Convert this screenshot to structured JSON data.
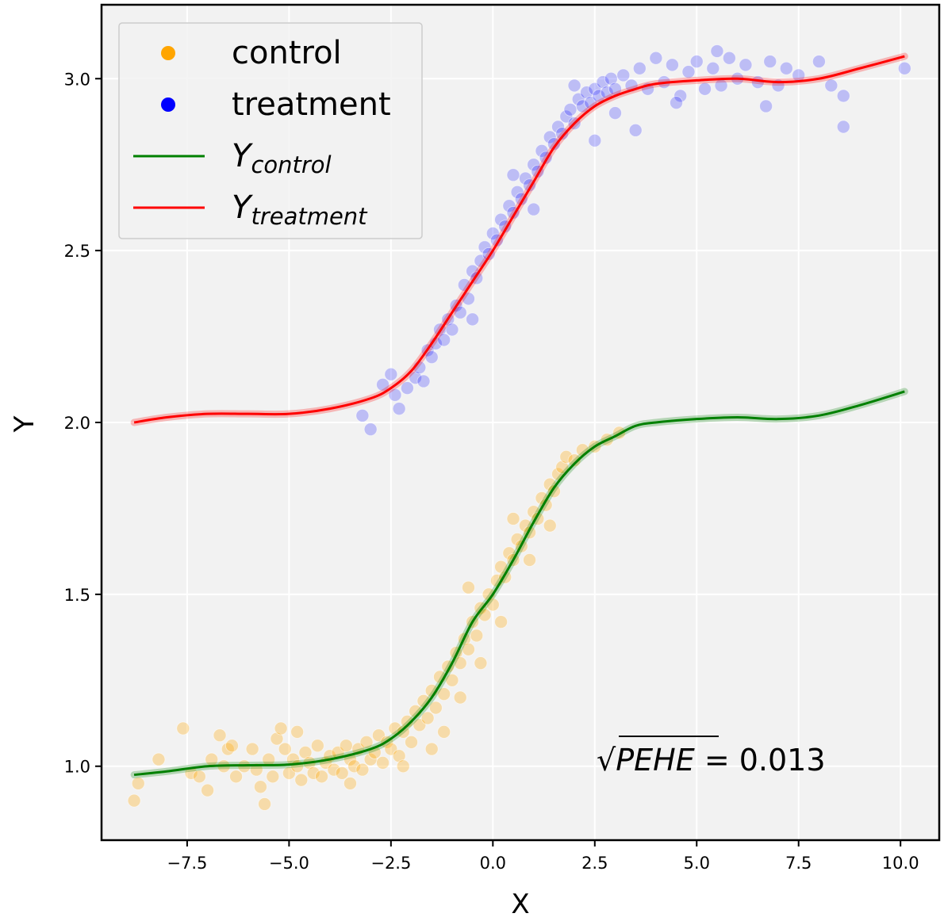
{
  "chart_data": {
    "type": "scatter",
    "xlabel": "X",
    "ylabel": "Y",
    "xlim": [
      -9.6,
      10.95
    ],
    "ylim": [
      0.785,
      3.215
    ],
    "xticks": [
      -7.5,
      -5.0,
      -2.5,
      0.0,
      2.5,
      5.0,
      7.5,
      10.0
    ],
    "xtick_labels": [
      "−7.5",
      "−5.0",
      "−2.5",
      "0.0",
      "2.5",
      "5.0",
      "7.5",
      "10.0"
    ],
    "yticks": [
      1.0,
      1.5,
      2.0,
      2.5,
      3.0
    ],
    "ytick_labels": [
      "1.0",
      "1.5",
      "2.0",
      "2.5",
      "3.0"
    ],
    "grid": true,
    "background_color": "#f2f2f2",
    "legend": {
      "placement": "top-left",
      "entries": [
        {
          "label": "control",
          "kind": "marker",
          "color": "#ffa500"
        },
        {
          "label": "treatment",
          "kind": "marker",
          "color": "#0000ff"
        },
        {
          "label_main": "Y",
          "label_sub": "control",
          "kind": "line",
          "color": "#008000"
        },
        {
          "label_main": "Y",
          "label_sub": "treatment",
          "kind": "line",
          "color": "#ff0000"
        }
      ]
    },
    "annotation": {
      "sqrt_symbol": "√",
      "term": "PEHE",
      "rest": " = 0.013"
    },
    "series": [
      {
        "kind": "scatter",
        "color": "#ffa500",
        "opacity": 0.3,
        "points": [
          [
            -8.8,
            0.9
          ],
          [
            -8.7,
            0.95
          ],
          [
            -8.2,
            1.02
          ],
          [
            -7.6,
            1.11
          ],
          [
            -7.4,
            0.98
          ],
          [
            -7.2,
            0.97
          ],
          [
            -7.0,
            0.93
          ],
          [
            -6.9,
            1.02
          ],
          [
            -6.7,
            1.09
          ],
          [
            -6.6,
            1.0
          ],
          [
            -6.5,
            1.05
          ],
          [
            -6.4,
            1.06
          ],
          [
            -6.3,
            0.97
          ],
          [
            -6.1,
            1.0
          ],
          [
            -5.9,
            1.05
          ],
          [
            -5.8,
            0.99
          ],
          [
            -5.7,
            0.94
          ],
          [
            -5.6,
            0.89
          ],
          [
            -5.5,
            1.02
          ],
          [
            -5.4,
            0.97
          ],
          [
            -5.3,
            1.08
          ],
          [
            -5.2,
            1.11
          ],
          [
            -5.1,
            1.05
          ],
          [
            -5.0,
            0.98
          ],
          [
            -4.9,
            1.02
          ],
          [
            -4.8,
            1.0
          ],
          [
            -4.7,
            0.96
          ],
          [
            -4.6,
            1.04
          ],
          [
            -4.5,
            1.01
          ],
          [
            -4.4,
            0.98
          ],
          [
            -4.3,
            1.06
          ],
          [
            -4.2,
            0.97
          ],
          [
            -4.1,
            1.01
          ],
          [
            -4.0,
            1.03
          ],
          [
            -3.9,
            0.99
          ],
          [
            -3.8,
            1.04
          ],
          [
            -3.7,
            0.98
          ],
          [
            -3.6,
            1.06
          ],
          [
            -3.5,
            1.02
          ],
          [
            -3.4,
            1.0
          ],
          [
            -3.3,
            1.05
          ],
          [
            -3.2,
            0.99
          ],
          [
            -3.1,
            1.07
          ],
          [
            -3.0,
            1.02
          ],
          [
            -2.9,
            1.04
          ],
          [
            -2.8,
            1.09
          ],
          [
            -2.7,
            1.01
          ],
          [
            -2.6,
            1.07
          ],
          [
            -2.5,
            1.05
          ],
          [
            -2.4,
            1.11
          ],
          [
            -2.3,
            1.03
          ],
          [
            -2.2,
            1.1
          ],
          [
            -2.1,
            1.13
          ],
          [
            -2.0,
            1.07
          ],
          [
            -1.9,
            1.16
          ],
          [
            -1.8,
            1.12
          ],
          [
            -1.7,
            1.19
          ],
          [
            -1.6,
            1.14
          ],
          [
            -1.5,
            1.22
          ],
          [
            -1.4,
            1.17
          ],
          [
            -1.3,
            1.26
          ],
          [
            -1.2,
            1.21
          ],
          [
            -1.1,
            1.29
          ],
          [
            -1.0,
            1.25
          ],
          [
            -0.9,
            1.33
          ],
          [
            -0.8,
            1.3
          ],
          [
            -0.7,
            1.37
          ],
          [
            -0.6,
            1.34
          ],
          [
            -0.5,
            1.42
          ],
          [
            -0.4,
            1.38
          ],
          [
            -0.3,
            1.46
          ],
          [
            -0.2,
            1.44
          ],
          [
            -0.1,
            1.5
          ],
          [
            0.0,
            1.47
          ],
          [
            0.1,
            1.54
          ],
          [
            0.2,
            1.58
          ],
          [
            0.3,
            1.55
          ],
          [
            0.4,
            1.62
          ],
          [
            0.5,
            1.6
          ],
          [
            0.6,
            1.66
          ],
          [
            0.7,
            1.64
          ],
          [
            0.8,
            1.7
          ],
          [
            0.9,
            1.68
          ],
          [
            1.0,
            1.74
          ],
          [
            1.1,
            1.72
          ],
          [
            1.2,
            1.78
          ],
          [
            1.3,
            1.76
          ],
          [
            1.4,
            1.82
          ],
          [
            1.5,
            1.8
          ],
          [
            1.6,
            1.85
          ],
          [
            1.7,
            1.87
          ],
          [
            1.8,
            1.9
          ],
          [
            2.0,
            1.89
          ],
          [
            2.2,
            1.92
          ],
          [
            2.5,
            1.93
          ],
          [
            2.8,
            1.95
          ],
          [
            3.1,
            1.97
          ],
          [
            -1.5,
            1.05
          ],
          [
            -1.2,
            1.1
          ],
          [
            -0.8,
            1.2
          ],
          [
            -0.3,
            1.3
          ],
          [
            0.2,
            1.42
          ],
          [
            0.9,
            1.6
          ],
          [
            1.4,
            1.7
          ],
          [
            -3.5,
            0.95
          ],
          [
            -4.8,
            1.1
          ],
          [
            -2.2,
            1.0
          ],
          [
            -0.6,
            1.52
          ],
          [
            0.5,
            1.72
          ]
        ]
      },
      {
        "kind": "scatter",
        "color": "#0000ff",
        "opacity": 0.22,
        "points": [
          [
            -3.2,
            2.02
          ],
          [
            -3.0,
            1.98
          ],
          [
            -2.7,
            2.11
          ],
          [
            -2.5,
            2.14
          ],
          [
            -2.4,
            2.08
          ],
          [
            -2.3,
            2.04
          ],
          [
            -2.1,
            2.1
          ],
          [
            -1.9,
            2.13
          ],
          [
            -1.8,
            2.16
          ],
          [
            -1.7,
            2.12
          ],
          [
            -1.6,
            2.21
          ],
          [
            -1.5,
            2.19
          ],
          [
            -1.4,
            2.23
          ],
          [
            -1.3,
            2.27
          ],
          [
            -1.2,
            2.24
          ],
          [
            -1.1,
            2.3
          ],
          [
            -1.0,
            2.27
          ],
          [
            -0.9,
            2.34
          ],
          [
            -0.8,
            2.32
          ],
          [
            -0.7,
            2.4
          ],
          [
            -0.6,
            2.36
          ],
          [
            -0.5,
            2.44
          ],
          [
            -0.4,
            2.42
          ],
          [
            -0.3,
            2.47
          ],
          [
            -0.2,
            2.51
          ],
          [
            -0.1,
            2.49
          ],
          [
            0.0,
            2.55
          ],
          [
            0.1,
            2.53
          ],
          [
            0.2,
            2.59
          ],
          [
            0.3,
            2.57
          ],
          [
            0.4,
            2.63
          ],
          [
            0.5,
            2.61
          ],
          [
            0.6,
            2.67
          ],
          [
            0.7,
            2.65
          ],
          [
            0.8,
            2.71
          ],
          [
            0.9,
            2.69
          ],
          [
            1.0,
            2.75
          ],
          [
            1.1,
            2.73
          ],
          [
            1.2,
            2.79
          ],
          [
            1.3,
            2.77
          ],
          [
            1.4,
            2.83
          ],
          [
            1.5,
            2.81
          ],
          [
            1.6,
            2.86
          ],
          [
            1.7,
            2.84
          ],
          [
            1.8,
            2.89
          ],
          [
            1.9,
            2.91
          ],
          [
            2.0,
            2.87
          ],
          [
            2.1,
            2.94
          ],
          [
            2.2,
            2.92
          ],
          [
            2.3,
            2.96
          ],
          [
            2.4,
            2.93
          ],
          [
            2.5,
            2.97
          ],
          [
            2.6,
            2.95
          ],
          [
            2.7,
            2.99
          ],
          [
            2.8,
            2.96
          ],
          [
            2.9,
            3.0
          ],
          [
            3.0,
            2.97
          ],
          [
            3.2,
            3.01
          ],
          [
            3.4,
            2.98
          ],
          [
            3.6,
            3.03
          ],
          [
            3.8,
            2.97
          ],
          [
            4.0,
            3.06
          ],
          [
            4.2,
            2.99
          ],
          [
            4.4,
            3.04
          ],
          [
            4.6,
            2.95
          ],
          [
            4.8,
            3.02
          ],
          [
            5.0,
            3.05
          ],
          [
            5.2,
            2.97
          ],
          [
            5.4,
            3.03
          ],
          [
            5.6,
            2.98
          ],
          [
            5.8,
            3.06
          ],
          [
            6.0,
            3.0
          ],
          [
            6.2,
            3.04
          ],
          [
            6.5,
            2.99
          ],
          [
            6.8,
            3.05
          ],
          [
            7.0,
            2.98
          ],
          [
            7.2,
            3.03
          ],
          [
            7.5,
            3.01
          ],
          [
            8.0,
            3.05
          ],
          [
            8.3,
            2.98
          ],
          [
            8.6,
            2.95
          ],
          [
            8.6,
            2.86
          ],
          [
            10.1,
            3.03
          ],
          [
            3.5,
            2.85
          ],
          [
            2.5,
            2.82
          ],
          [
            4.5,
            2.93
          ],
          [
            1.0,
            2.62
          ],
          [
            -0.5,
            2.3
          ],
          [
            5.5,
            3.08
          ],
          [
            6.7,
            2.92
          ],
          [
            0.5,
            2.72
          ],
          [
            2.0,
            2.98
          ],
          [
            3.0,
            2.9
          ]
        ]
      },
      {
        "kind": "line",
        "color": "#008000",
        "points": [
          [
            -8.8,
            0.975
          ],
          [
            -8.0,
            0.985
          ],
          [
            -7.0,
            1.0
          ],
          [
            -6.0,
            1.003
          ],
          [
            -5.0,
            1.005
          ],
          [
            -4.0,
            1.02
          ],
          [
            -3.0,
            1.05
          ],
          [
            -2.5,
            1.08
          ],
          [
            -2.0,
            1.13
          ],
          [
            -1.5,
            1.2
          ],
          [
            -1.0,
            1.3
          ],
          [
            -0.5,
            1.42
          ],
          [
            0.0,
            1.5
          ],
          [
            0.5,
            1.6
          ],
          [
            1.0,
            1.71
          ],
          [
            1.5,
            1.81
          ],
          [
            2.0,
            1.88
          ],
          [
            2.5,
            1.93
          ],
          [
            3.0,
            1.96
          ],
          [
            3.5,
            1.99
          ],
          [
            4.0,
            2.0
          ],
          [
            5.0,
            2.01
          ],
          [
            6.0,
            2.015
          ],
          [
            7.0,
            2.01
          ],
          [
            8.0,
            2.02
          ],
          [
            9.0,
            2.05
          ],
          [
            10.1,
            2.09
          ]
        ]
      },
      {
        "kind": "line",
        "color": "#ff0000",
        "points": [
          [
            -8.8,
            2.0
          ],
          [
            -8.0,
            2.015
          ],
          [
            -7.0,
            2.025
          ],
          [
            -6.0,
            2.025
          ],
          [
            -5.0,
            2.025
          ],
          [
            -4.0,
            2.04
          ],
          [
            -3.0,
            2.07
          ],
          [
            -2.5,
            2.1
          ],
          [
            -2.0,
            2.15
          ],
          [
            -1.5,
            2.23
          ],
          [
            -1.0,
            2.32
          ],
          [
            -0.5,
            2.41
          ],
          [
            0.0,
            2.5
          ],
          [
            0.5,
            2.6
          ],
          [
            1.0,
            2.7
          ],
          [
            1.5,
            2.8
          ],
          [
            2.0,
            2.87
          ],
          [
            2.5,
            2.92
          ],
          [
            3.0,
            2.95
          ],
          [
            3.5,
            2.97
          ],
          [
            4.0,
            2.985
          ],
          [
            5.0,
            2.995
          ],
          [
            6.0,
            3.0
          ],
          [
            7.0,
            2.99
          ],
          [
            8.0,
            3.0
          ],
          [
            9.0,
            3.03
          ],
          [
            10.1,
            3.065
          ]
        ]
      }
    ]
  }
}
